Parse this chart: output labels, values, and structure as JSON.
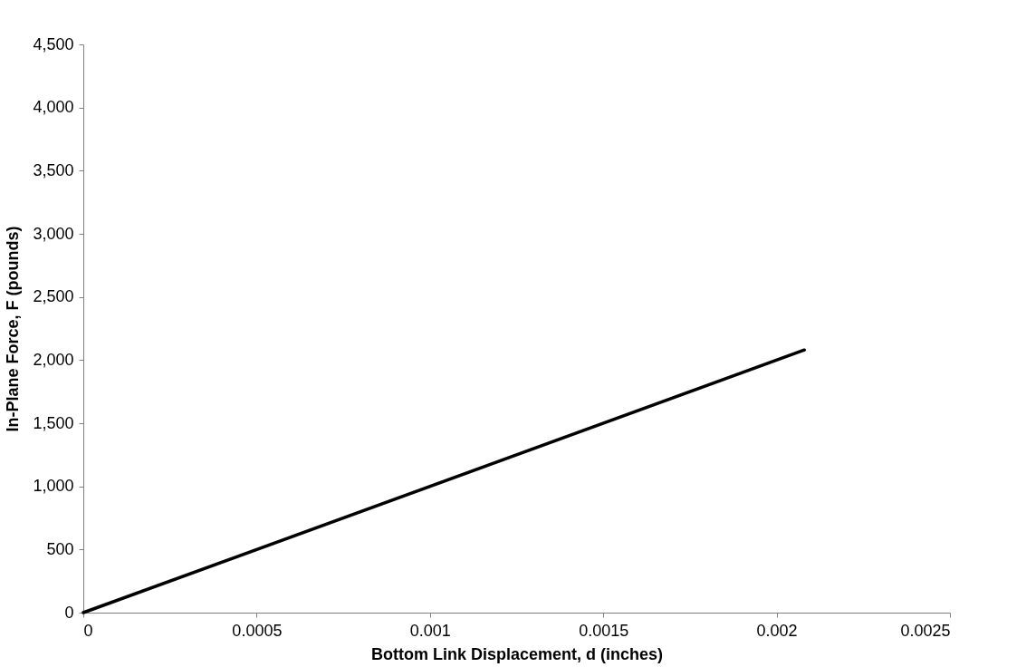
{
  "chart_data": {
    "type": "line",
    "xlabel": "Bottom Link Displacement, d (inches)",
    "ylabel": "In-Plane Force, F (pounds)",
    "x": [
      0,
      0.00208
    ],
    "series": [
      {
        "color": "#000000",
        "values": [
          0,
          2080
        ]
      }
    ],
    "xlim": [
      0,
      0.0025
    ],
    "xticks": [
      0,
      0.0005,
      0.001,
      0.0015,
      0.002,
      0.0025
    ],
    "ylim": [
      0,
      4500
    ],
    "yticks": [
      0,
      {
        "value": 500,
        "label": "500"
      },
      {
        "value": 1000,
        "label": "1,000"
      },
      {
        "value": 1500,
        "label": "1,500"
      },
      {
        "value": 2000,
        "label": "2,000"
      },
      {
        "value": 2500,
        "label": "2,500"
      },
      {
        "value": 3000,
        "label": "3,000"
      },
      {
        "value": 3500,
        "label": "3,500"
      },
      {
        "value": 4000,
        "label": "4,000"
      },
      {
        "value": 4500,
        "label": "4,500"
      }
    ],
    "grid": false,
    "legend": false,
    "marker": "none",
    "line_style": "solid"
  }
}
